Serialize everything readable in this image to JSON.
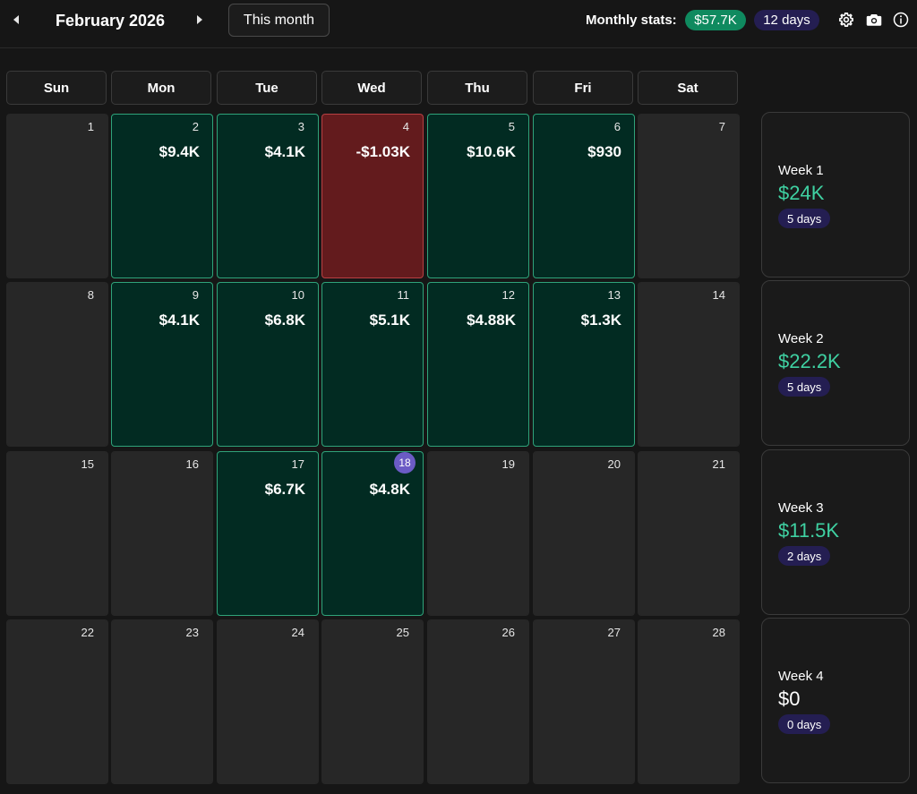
{
  "header": {
    "month_title": "February 2026",
    "this_month_label": "This month",
    "stats_label": "Monthly stats:",
    "stats_total": "$57.7K",
    "stats_days": "12 days",
    "icons": [
      "caret-left-icon",
      "caret-right-icon",
      "gear-icon",
      "camera-icon",
      "info-icon"
    ]
  },
  "weekdays": [
    "Sun",
    "Mon",
    "Tue",
    "Wed",
    "Thu",
    "Fri",
    "Sat"
  ],
  "colors": {
    "profit_bg": "#022b22",
    "profit_border": "#2fa37a",
    "loss_bg": "#631b1d",
    "loss_border": "#b84043",
    "today_dot": "#6b5bc5",
    "week_amount": "#3fd1a2",
    "badge_green": "#0f8a5f",
    "badge_purple": "#241e52"
  },
  "today": "18",
  "weeks": [
    {
      "days": [
        {
          "num": "1",
          "amount": "",
          "status": "none"
        },
        {
          "num": "2",
          "amount": "$9.4K",
          "status": "profit"
        },
        {
          "num": "3",
          "amount": "$4.1K",
          "status": "profit"
        },
        {
          "num": "4",
          "amount": "-$1.03K",
          "status": "loss"
        },
        {
          "num": "5",
          "amount": "$10.6K",
          "status": "profit"
        },
        {
          "num": "6",
          "amount": "$930",
          "status": "profit"
        },
        {
          "num": "7",
          "amount": "",
          "status": "none"
        }
      ],
      "summary": {
        "label": "Week 1",
        "amount": "$24K",
        "days": "5 days"
      }
    },
    {
      "days": [
        {
          "num": "8",
          "amount": "",
          "status": "none"
        },
        {
          "num": "9",
          "amount": "$4.1K",
          "status": "profit"
        },
        {
          "num": "10",
          "amount": "$6.8K",
          "status": "profit"
        },
        {
          "num": "11",
          "amount": "$5.1K",
          "status": "profit"
        },
        {
          "num": "12",
          "amount": "$4.88K",
          "status": "profit"
        },
        {
          "num": "13",
          "amount": "$1.3K",
          "status": "profit"
        },
        {
          "num": "14",
          "amount": "",
          "status": "none"
        }
      ],
      "summary": {
        "label": "Week 2",
        "amount": "$22.2K",
        "days": "5 days"
      }
    },
    {
      "days": [
        {
          "num": "15",
          "amount": "",
          "status": "none"
        },
        {
          "num": "16",
          "amount": "",
          "status": "none"
        },
        {
          "num": "17",
          "amount": "$6.7K",
          "status": "profit"
        },
        {
          "num": "18",
          "amount": "$4.8K",
          "status": "profit"
        },
        {
          "num": "19",
          "amount": "",
          "status": "none"
        },
        {
          "num": "20",
          "amount": "",
          "status": "none"
        },
        {
          "num": "21",
          "amount": "",
          "status": "none"
        }
      ],
      "summary": {
        "label": "Week 3",
        "amount": "$11.5K",
        "days": "2 days"
      }
    },
    {
      "days": [
        {
          "num": "22",
          "amount": "",
          "status": "none"
        },
        {
          "num": "23",
          "amount": "",
          "status": "none"
        },
        {
          "num": "24",
          "amount": "",
          "status": "none"
        },
        {
          "num": "25",
          "amount": "",
          "status": "none"
        },
        {
          "num": "26",
          "amount": "",
          "status": "none"
        },
        {
          "num": "27",
          "amount": "",
          "status": "none"
        },
        {
          "num": "28",
          "amount": "",
          "status": "none"
        }
      ],
      "summary": {
        "label": "Week 4",
        "amount": "$0",
        "days": "0 days"
      }
    }
  ]
}
